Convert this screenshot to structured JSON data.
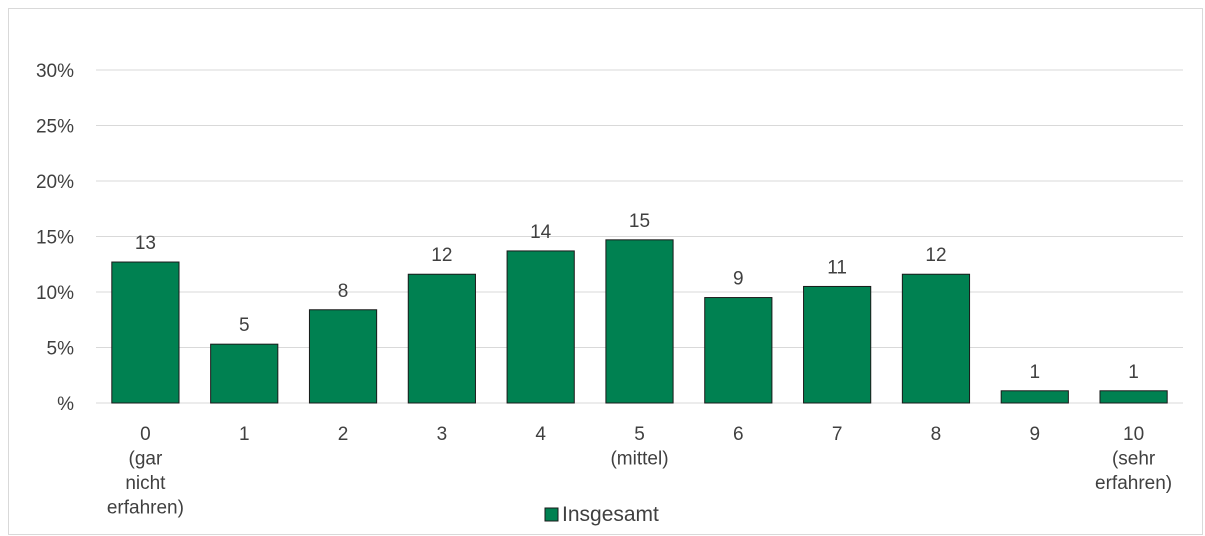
{
  "chart_data": {
    "type": "bar",
    "categories": [
      [
        "0",
        "(gar",
        "nicht",
        "erfahren)"
      ],
      [
        "1"
      ],
      [
        "2"
      ],
      [
        "3"
      ],
      [
        "4"
      ],
      [
        "5",
        "(mittel)"
      ],
      [
        "6"
      ],
      [
        "7"
      ],
      [
        "8"
      ],
      [
        "9"
      ],
      [
        "10",
        "(sehr",
        "erfahren)"
      ]
    ],
    "series": [
      {
        "name": "Insgesamt",
        "values": [
          12.7,
          5.3,
          8.4,
          11.6,
          13.7,
          14.7,
          9.5,
          10.5,
          11.6,
          1.1,
          1.1
        ],
        "labels": [
          "13",
          "5",
          "8",
          "12",
          "14",
          "15",
          "9",
          "11",
          "12",
          "1",
          "1"
        ]
      }
    ],
    "yticks": [
      "%",
      "5%",
      "10%",
      "15%",
      "20%",
      "25%",
      "30%"
    ],
    "ylim": [
      0,
      30
    ],
    "ystep": 5,
    "grid": true,
    "legend": "bottom-center",
    "colors": {
      "bar": "#008151",
      "bar_edge": "#1a1a1a",
      "grid": "#d9d9d9"
    }
  }
}
